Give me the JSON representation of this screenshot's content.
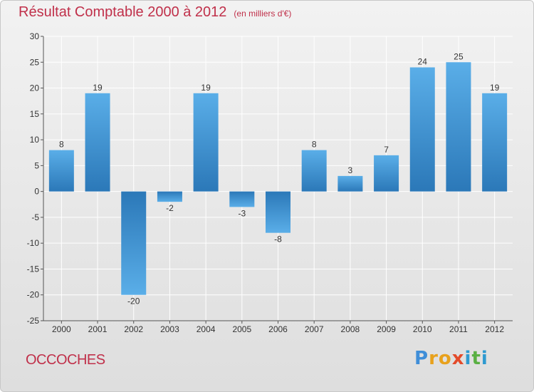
{
  "title": {
    "main": "Résultat Comptable 2000 à 2012",
    "unit": "(en milliers d'€)"
  },
  "commune": "OCCOCHES",
  "logo": {
    "letters": [
      "P",
      "r",
      "o",
      "x",
      "i",
      "t",
      "i"
    ],
    "colors": [
      "#3f8ed8",
      "#e8a11c",
      "#e8a11c",
      "#e34b2a",
      "#2e9ad0",
      "#5ab043",
      "#2e9ad0"
    ]
  },
  "colors": {
    "bar_light": "#5aaee8",
    "bar_dark": "#2b78b8",
    "title": "#c0304a"
  },
  "chart_data": {
    "type": "bar",
    "categories": [
      "2000",
      "2001",
      "2002",
      "2003",
      "2004",
      "2005",
      "2006",
      "2007",
      "2008",
      "2009",
      "2010",
      "2011",
      "2012"
    ],
    "values": [
      8,
      19,
      -20,
      -2,
      19,
      -3,
      -8,
      8,
      3,
      7,
      24,
      25,
      19
    ],
    "ylim": [
      -25,
      30
    ],
    "yticks": [
      30,
      25,
      20,
      15,
      10,
      5,
      0,
      -5,
      -10,
      -15,
      -20,
      -25
    ],
    "grid": true,
    "xlabel": "",
    "ylabel": ""
  }
}
